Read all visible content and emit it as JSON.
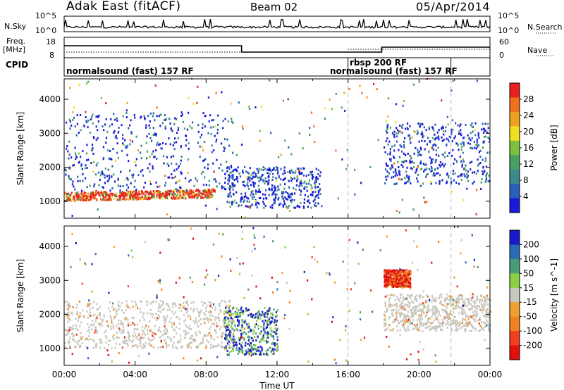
{
  "header": {
    "title_left": "Adak East (fitACF)",
    "title_center": "Beam 02",
    "title_right": "05/Apr/2014"
  },
  "labels": {
    "nsky": "N.Sky",
    "nsearch": "N.Search",
    "freq": "Freq.",
    "mhz": "[MHz]",
    "nave": "Nave",
    "cpid": "CPID",
    "nsky_top": "10^5",
    "nsky_bottom": "10^0",
    "freq_top": "18",
    "freq_bottom": "8",
    "nave_top": "60",
    "nave_bottom": "0"
  },
  "cpid_segments": [
    {
      "label": "normalsound (fast) 157 RF",
      "start_hour": 0
    },
    {
      "label": "rbsp 200 RF",
      "start_hour": 16
    },
    {
      "label": "normalsound (fast) 157 RF",
      "start_hour": 16
    }
  ],
  "chart_data": [
    {
      "type": "heatmap",
      "panel": "power",
      "ylabel": "Slant Range [km]",
      "xlim": [
        0,
        24
      ],
      "ylim": [
        500,
        4600
      ],
      "yticks": [
        1000,
        2000,
        3000,
        4000
      ],
      "colorbar_label": "Power [dB]",
      "colorbar_ticks": [
        4,
        8,
        12,
        16,
        20,
        24,
        28
      ],
      "colorbar_range": [
        0,
        32
      ],
      "colors": [
        "#1a1ad8",
        "#2a5fb8",
        "#3a8a8a",
        "#4aa060",
        "#7cc040",
        "#f0e020",
        "#f0a020",
        "#f07020",
        "#e82020"
      ],
      "features": [
        {
          "x": [
            0,
            8.5
          ],
          "y": [
            1000,
            1250
          ],
          "level": "high"
        },
        {
          "x": [
            0,
            9.5
          ],
          "y": [
            1300,
            3600
          ],
          "level": "low"
        },
        {
          "x": [
            9,
            14.5
          ],
          "y": [
            800,
            2000
          ],
          "level": "low"
        },
        {
          "x": [
            18,
            24
          ],
          "y": [
            1500,
            3300
          ],
          "level": "low"
        }
      ]
    },
    {
      "type": "heatmap",
      "panel": "velocity",
      "ylabel": "Slant Range [km]",
      "xlabel": "Time UT",
      "xlim": [
        0,
        24
      ],
      "ylim": [
        500,
        4600
      ],
      "yticks": [
        1000,
        2000,
        3000,
        4000
      ],
      "xticks": [
        "00:00",
        "04:00",
        "08:00",
        "12:00",
        "16:00",
        "20:00",
        "00:00"
      ],
      "colorbar_label": "Velocity [m s^-1]",
      "colorbar_ticks": [
        200,
        100,
        50,
        15,
        -15,
        -50,
        -100,
        -200
      ],
      "colors": [
        "#1a1acc",
        "#2a6ab8",
        "#4a9a7a",
        "#8ad040",
        "#c8c8c0",
        "#f0a030",
        "#f08020",
        "#f04020",
        "#e01010"
      ],
      "features": [
        {
          "x": [
            0,
            9.5
          ],
          "y": [
            1000,
            2400
          ],
          "level": "ground"
        },
        {
          "x": [
            18,
            24
          ],
          "y": [
            1500,
            2600
          ],
          "level": "ground"
        },
        {
          "x": [
            18,
            19.5
          ],
          "y": [
            2800,
            3300
          ],
          "level": "away"
        },
        {
          "x": [
            9,
            12
          ],
          "y": [
            800,
            2200
          ],
          "level": "toward"
        }
      ]
    }
  ]
}
